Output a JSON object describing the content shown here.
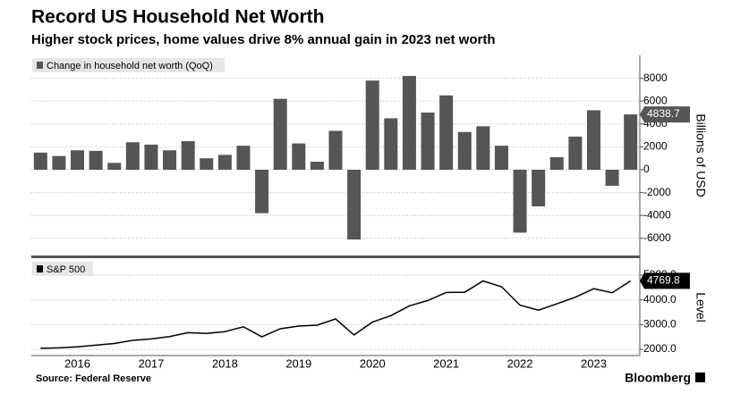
{
  "title": "Record US Household Net Worth",
  "subtitle": "Higher stock prices, home values drive 8% annual gain in 2023 net worth",
  "source": "Source: Federal Reserve",
  "brand": "Bloomberg",
  "chart_data": [
    {
      "type": "bar",
      "y_label": "Billions of USD",
      "categories": [
        null,
        null,
        "2016",
        null,
        null,
        null,
        "2017",
        null,
        null,
        null,
        "2018",
        null,
        null,
        null,
        "2019",
        null,
        null,
        null,
        "2020",
        null,
        null,
        null,
        "2021",
        null,
        null,
        null,
        "2022",
        null,
        null,
        null,
        "2023",
        null,
        null
      ],
      "series": [
        {
          "name": "Change in household net worth (QoQ)",
          "color": "#555555",
          "values": [
            1500,
            1200,
            1700,
            1650,
            600,
            2400,
            2200,
            1700,
            2500,
            1000,
            1300,
            2100,
            -3800,
            6200,
            2300,
            700,
            3400,
            -6100,
            7800,
            4500,
            8200,
            5000,
            6500,
            3300,
            3800,
            2100,
            -5500,
            -3200,
            1100,
            2900,
            5200,
            -1400,
            4838.7
          ]
        }
      ],
      "ylim": [
        -7500,
        10000
      ],
      "yticks": [
        -6000,
        -4000,
        -2000,
        0,
        2000,
        4000,
        6000,
        8000
      ],
      "grid": true
    },
    {
      "type": "line",
      "y_label": "Level",
      "series": [
        {
          "name": "S&P 500",
          "color": "#000000",
          "values": [
            2043,
            2060,
            2099,
            2168,
            2239,
            2363,
            2423,
            2519,
            2674,
            2641,
            2718,
            2914,
            2507,
            2834,
            2942,
            2977,
            3231,
            2585,
            3100,
            3363,
            3756,
            3973,
            4298,
            4308,
            4766,
            4530,
            3785,
            3586,
            3840,
            4109,
            4450,
            4288,
            4769.8
          ]
        }
      ],
      "ylim": [
        1750,
        5650
      ],
      "yticks": [
        {
          "value": 2000,
          "label": "2000.0"
        },
        {
          "value": 3000,
          "label": "3000.0"
        },
        {
          "value": 4000,
          "label": "4000.0"
        },
        {
          "value": 5000,
          "label": "5000.0"
        }
      ],
      "grid": true
    }
  ]
}
